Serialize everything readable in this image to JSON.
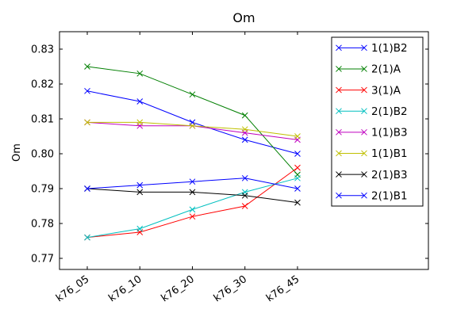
{
  "chart_data": {
    "type": "line",
    "title": "Om",
    "ylabel": "Om",
    "xlabel": "",
    "categories": [
      "k76_05",
      "k76_10",
      "k76_20",
      "k76_30",
      "k76_45"
    ],
    "yticks": [
      0.83,
      0.82,
      0.81,
      0.8,
      0.79,
      0.78,
      0.77
    ],
    "ylim": [
      0.7668,
      0.835
    ],
    "grid": false,
    "marker": "x",
    "legend_position": "upper right",
    "series": [
      {
        "name": "1(1)B2",
        "color": "#0000ff",
        "values": [
          0.818,
          0.815,
          0.809,
          0.804,
          0.8
        ]
      },
      {
        "name": "2(1)A",
        "color": "#007f00",
        "values": [
          0.825,
          0.823,
          0.817,
          0.811,
          0.794
        ]
      },
      {
        "name": "3(1)A",
        "color": "#ff0000",
        "values": [
          0.776,
          0.7775,
          0.782,
          0.785,
          0.796
        ]
      },
      {
        "name": "2(1)B2",
        "color": "#00bfbf",
        "values": [
          0.776,
          0.7785,
          0.784,
          0.789,
          0.793
        ]
      },
      {
        "name": "1(1)B3",
        "color": "#bf00bf",
        "values": [
          0.809,
          0.808,
          0.808,
          0.806,
          0.804
        ]
      },
      {
        "name": "1(1)B1",
        "color": "#bfbf00",
        "values": [
          0.809,
          0.809,
          0.808,
          0.807,
          0.805
        ]
      },
      {
        "name": "2(1)B3",
        "color": "#000000",
        "values": [
          0.79,
          0.789,
          0.789,
          0.788,
          0.786
        ]
      },
      {
        "name": "2(1)B1",
        "color": "#0000ff",
        "values": [
          0.79,
          0.791,
          0.792,
          0.793,
          0.79
        ]
      }
    ]
  }
}
